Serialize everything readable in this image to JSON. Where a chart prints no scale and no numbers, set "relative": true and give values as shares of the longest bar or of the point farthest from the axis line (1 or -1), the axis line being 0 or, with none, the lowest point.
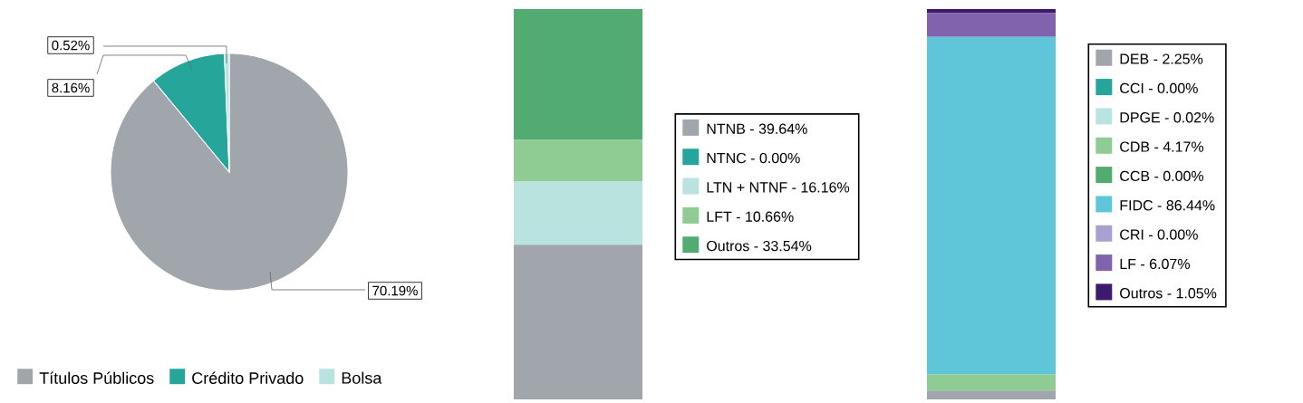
{
  "chart_data": [
    {
      "type": "pie",
      "categories": [
        "Títulos Públicos",
        "Crédito Privado",
        "Bolsa"
      ],
      "values": [
        70.19,
        8.16,
        0.52
      ],
      "colors": [
        "#a0a6ab",
        "#26a69a",
        "#b9e3de"
      ],
      "value_labels": [
        "70.19%",
        "8.16%",
        "0.52%"
      ],
      "legend": "bottom"
    },
    {
      "type": "bar",
      "stacked": true,
      "relative": true,
      "categories": [
        null
      ],
      "legend": "right",
      "series": [
        {
          "name": "NTNB - 39.64%",
          "color": "#a0a6ab",
          "values": [
            0.3964
          ]
        },
        {
          "name": "NTNC - 0.00%",
          "color": "#26a69a",
          "values": [
            0.0
          ]
        },
        {
          "name": "LTN + NTNF - 16.16%",
          "color": "#b9e3de",
          "values": [
            0.1616
          ]
        },
        {
          "name": "LFT - 10.66%",
          "color": "#8ecc93",
          "values": [
            0.1066
          ]
        },
        {
          "name": "Outros - 33.54%",
          "color": "#52ab70",
          "values": [
            0.3354
          ]
        }
      ]
    },
    {
      "type": "bar",
      "stacked": true,
      "relative": true,
      "categories": [
        null
      ],
      "legend": "right",
      "series": [
        {
          "name": "DEB - 2.25%",
          "color": "#a0a6ab",
          "values": [
            0.0225
          ]
        },
        {
          "name": "CCI - 0.00%",
          "color": "#26a69a",
          "values": [
            0.0
          ]
        },
        {
          "name": "DPGE - 0.02%",
          "color": "#b9e3de",
          "values": [
            0.0002
          ]
        },
        {
          "name": "CDB - 4.17%",
          "color": "#8ecc93",
          "values": [
            0.0417
          ]
        },
        {
          "name": "CCB - 0.00%",
          "color": "#52ab70",
          "values": [
            0.0
          ]
        },
        {
          "name": "FIDC - 86.44%",
          "color": "#5fc6da",
          "values": [
            0.8644
          ]
        },
        {
          "name": "CRI - 0.00%",
          "color": "#a99fd0",
          "values": [
            0.0
          ]
        },
        {
          "name": "LF - 6.07%",
          "color": "#8163ad",
          "values": [
            0.0607
          ]
        },
        {
          "name": "Outros - 1.05%",
          "color": "#3d1a70",
          "values": [
            0.0105
          ]
        }
      ]
    }
  ]
}
